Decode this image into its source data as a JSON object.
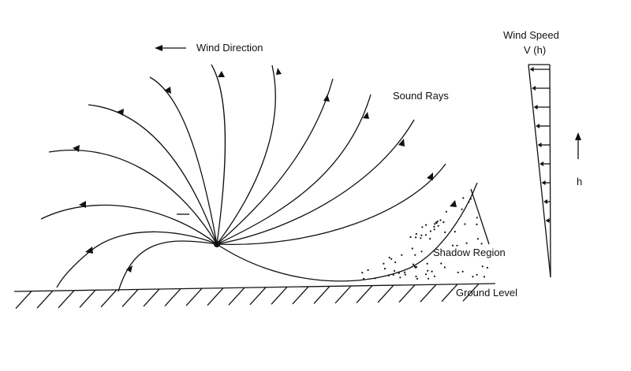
{
  "labels": {
    "wind_direction": "Wind Direction",
    "sound_rays": "Sound Rays",
    "wind_speed": "Wind Speed",
    "wind_speed_symbol": "V (h)",
    "height_symbol": "h",
    "shadow_region": "Shadow Region",
    "ground_level": "Ground Level"
  }
}
